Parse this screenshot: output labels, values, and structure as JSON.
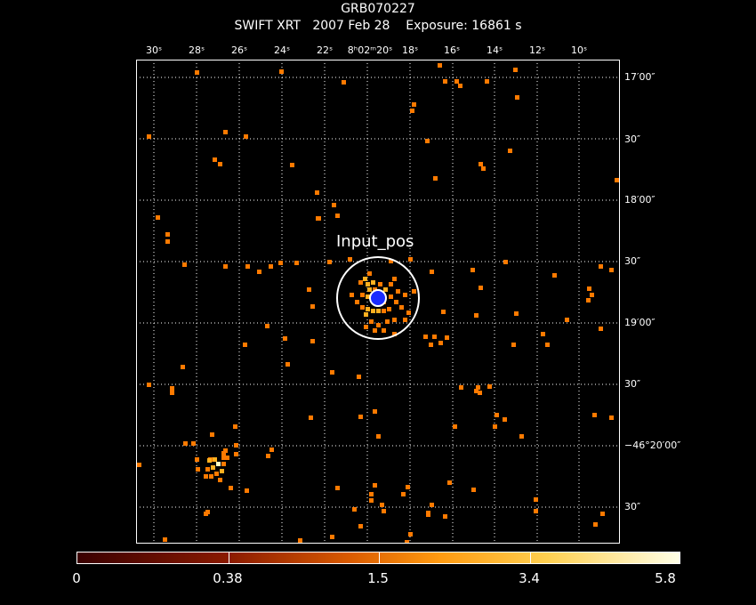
{
  "title": "GRB070227",
  "subtitle": "SWIFT XRT   2007 Feb 28    Exposure: 16861 s",
  "source_label": "Input_pos",
  "x_ticks": [
    "30ˢ",
    "28ˢ",
    "26ˢ",
    "24ˢ",
    "22ˢ",
    "8ʰ02ᵐ20ˢ",
    "18ˢ",
    "16ˢ",
    "14ˢ",
    "12ˢ",
    "10ˢ"
  ],
  "y_ticks": [
    "17′00″",
    "30″",
    "18′00″",
    "30″",
    "19′00″",
    "30″",
    "−46°20′00″",
    "30″"
  ],
  "colorbar": {
    "labels": [
      "0",
      "0.38",
      "1.5",
      "3.4",
      "5.8"
    ]
  },
  "colors": {
    "dim": "#e04a00",
    "mid": "#ff7a00",
    "bright": "#ffb020",
    "peak": "#ffffc0",
    "circle": "#ffffff",
    "marker": "#1a2cff"
  }
}
